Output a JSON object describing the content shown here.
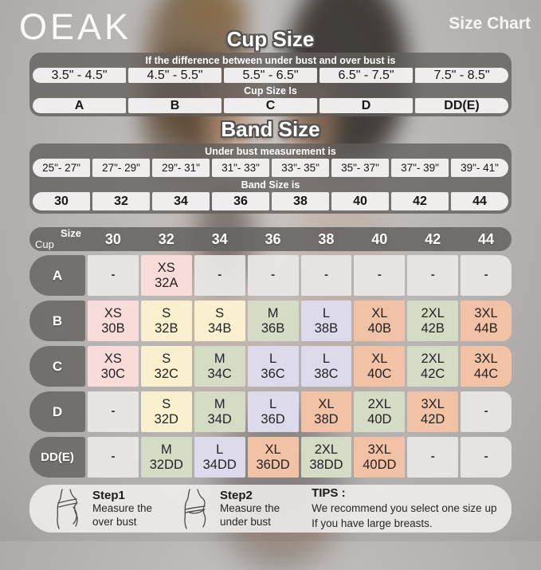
{
  "brand": {
    "logo": "OEAK",
    "page_title": "Size Chart"
  },
  "cup": {
    "title": "Cup Size",
    "condition_label": "If the difference between under bust and over bust is",
    "ranges": [
      "3.5\" - 4.5\"",
      "4.5\" - 5.5\"",
      "5.5\" - 6.5\"",
      "6.5\" - 7.5\"",
      "7.5\" - 8.5\""
    ],
    "result_label": "Cup Size Is",
    "values": [
      "A",
      "B",
      "C",
      "D",
      "DD(E)"
    ]
  },
  "band": {
    "title": "Band Size",
    "condition_label": "Under bust measurement is",
    "ranges": [
      "25\"- 27\"",
      "27\"- 29\"",
      "29\"- 31\"",
      "31\"- 33\"",
      "33\"- 35\"",
      "35\"- 37\"",
      "37\"- 39\"",
      "39\"- 41\""
    ],
    "result_label": "Band Size is",
    "values": [
      "30",
      "32",
      "34",
      "36",
      "38",
      "40",
      "42",
      "44"
    ]
  },
  "matrix": {
    "corner_top": "Size",
    "corner_bottom": "Cup",
    "columns": [
      "30",
      "32",
      "34",
      "36",
      "38",
      "40",
      "42",
      "44"
    ],
    "rows": [
      {
        "cup": "A",
        "cells": [
          {
            "size": "-",
            "code": "",
            "color": "gray"
          },
          {
            "size": "XS",
            "code": "32A",
            "color": "pink"
          },
          {
            "size": "-",
            "code": "",
            "color": "gray"
          },
          {
            "size": "-",
            "code": "",
            "color": "gray"
          },
          {
            "size": "-",
            "code": "",
            "color": "gray"
          },
          {
            "size": "-",
            "code": "",
            "color": "gray"
          },
          {
            "size": "-",
            "code": "",
            "color": "gray"
          },
          {
            "size": "-",
            "code": "",
            "color": "gray"
          }
        ]
      },
      {
        "cup": "B",
        "cells": [
          {
            "size": "XS",
            "code": "30B",
            "color": "pink"
          },
          {
            "size": "S",
            "code": "32B",
            "color": "cream"
          },
          {
            "size": "S",
            "code": "34B",
            "color": "cream"
          },
          {
            "size": "M",
            "code": "36B",
            "color": "green"
          },
          {
            "size": "L",
            "code": "38B",
            "color": "lavender"
          },
          {
            "size": "XL",
            "code": "40B",
            "color": "salmon"
          },
          {
            "size": "2XL",
            "code": "42B",
            "color": "green"
          },
          {
            "size": "3XL",
            "code": "44B",
            "color": "salmon"
          }
        ]
      },
      {
        "cup": "C",
        "cells": [
          {
            "size": "XS",
            "code": "30C",
            "color": "pink"
          },
          {
            "size": "S",
            "code": "32C",
            "color": "cream"
          },
          {
            "size": "M",
            "code": "34C",
            "color": "green"
          },
          {
            "size": "L",
            "code": "36C",
            "color": "lavender"
          },
          {
            "size": "L",
            "code": "38C",
            "color": "lavender"
          },
          {
            "size": "XL",
            "code": "40C",
            "color": "salmon"
          },
          {
            "size": "2XL",
            "code": "42C",
            "color": "green"
          },
          {
            "size": "3XL",
            "code": "44C",
            "color": "salmon"
          }
        ]
      },
      {
        "cup": "D",
        "cells": [
          {
            "size": "-",
            "code": "",
            "color": "gray"
          },
          {
            "size": "S",
            "code": "32D",
            "color": "cream"
          },
          {
            "size": "M",
            "code": "34D",
            "color": "green"
          },
          {
            "size": "L",
            "code": "36D",
            "color": "lavender"
          },
          {
            "size": "XL",
            "code": "38D",
            "color": "salmon"
          },
          {
            "size": "2XL",
            "code": "40D",
            "color": "green"
          },
          {
            "size": "3XL",
            "code": "42D",
            "color": "salmon"
          },
          {
            "size": "-",
            "code": "",
            "color": "gray"
          }
        ]
      },
      {
        "cup": "DD(E)",
        "cells": [
          {
            "size": "-",
            "code": "",
            "color": "gray"
          },
          {
            "size": "M",
            "code": "32DD",
            "color": "green"
          },
          {
            "size": "L",
            "code": "34DD",
            "color": "lavender"
          },
          {
            "size": "XL",
            "code": "36DD",
            "color": "salmon"
          },
          {
            "size": "2XL",
            "code": "38DD",
            "color": "green"
          },
          {
            "size": "3XL",
            "code": "40DD",
            "color": "salmon"
          },
          {
            "size": "-",
            "code": "",
            "color": "gray"
          },
          {
            "size": "-",
            "code": "",
            "color": "gray"
          }
        ]
      }
    ]
  },
  "footer": {
    "steps": [
      {
        "label": "Step1",
        "line1": "Measure the",
        "line2": "over bust",
        "icon": "measuring-over-bust-icon"
      },
      {
        "label": "Step2",
        "line1": "Measure the",
        "line2": "under bust",
        "icon": "measuring-under-bust-icon"
      }
    ],
    "tips_label": "TIPS :",
    "tips_line1": "We recommend you select one size up",
    "tips_line2": "If you have large breasts."
  },
  "colors": {
    "panel_dark": "#6b6765",
    "cell_white": "#f4f2f1",
    "cell_gray": "#eae8e7",
    "cell_pink": "#f8dcda",
    "cell_cream": "#f9f0cf",
    "cell_green": "#d4dcc6",
    "cell_lavender": "#dcdaeb",
    "cell_salmon": "#f2c2a7",
    "heading_white": "#ffffff",
    "text_dark": "#1f1f1f"
  },
  "chart_data": [
    {
      "type": "table",
      "title": "Cup Size",
      "subtitle": "If the difference between under bust and over bust is",
      "columns": [
        "3.5\" - 4.5\"",
        "4.5\" - 5.5\"",
        "5.5\" - 6.5\"",
        "6.5\" - 7.5\"",
        "7.5\" - 8.5\""
      ],
      "result_label": "Cup Size Is",
      "values": [
        "A",
        "B",
        "C",
        "D",
        "DD(E)"
      ]
    },
    {
      "type": "table",
      "title": "Band Size",
      "subtitle": "Under bust measurement is",
      "columns": [
        "25\"- 27\"",
        "27\"- 29\"",
        "29\"- 31\"",
        "31\"- 33\"",
        "33\"- 35\"",
        "35\"- 37\"",
        "37\"- 39\"",
        "39\"- 41\""
      ],
      "result_label": "Band Size is",
      "values": [
        "30",
        "32",
        "34",
        "36",
        "38",
        "40",
        "42",
        "44"
      ]
    },
    {
      "type": "table",
      "title": "Cup x Band size matrix",
      "columns": [
        "30",
        "32",
        "34",
        "36",
        "38",
        "40",
        "42",
        "44"
      ],
      "row_headers": [
        "A",
        "B",
        "C",
        "D",
        "DD(E)"
      ],
      "rows": [
        [
          "-",
          "XS 32A",
          "-",
          "-",
          "-",
          "-",
          "-",
          "-"
        ],
        [
          "XS 30B",
          "S 32B",
          "S 34B",
          "M 36B",
          "L 38B",
          "XL 40B",
          "2XL 42B",
          "3XL 44B"
        ],
        [
          "XS 30C",
          "S 32C",
          "M 34C",
          "L 36C",
          "L 38C",
          "XL 40C",
          "2XL 42C",
          "3XL 44C"
        ],
        [
          "-",
          "S 32D",
          "M 34D",
          "L 36D",
          "XL 38D",
          "2XL 40D",
          "3XL 42D",
          "-"
        ],
        [
          "-",
          "M 32DD",
          "L 34DD",
          "XL 36DD",
          "2XL 38DD",
          "3XL 40DD",
          "-",
          "-"
        ]
      ]
    }
  ]
}
